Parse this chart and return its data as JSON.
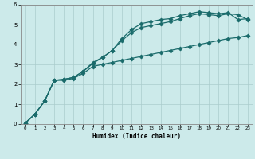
{
  "xlabel": "Humidex (Indice chaleur)",
  "bg_color": "#cceaea",
  "grid_color": "#aacccc",
  "line_color": "#1a6b6b",
  "xlim": [
    -0.5,
    23.5
  ],
  "ylim": [
    0,
    6
  ],
  "xticks": [
    0,
    1,
    2,
    3,
    4,
    5,
    6,
    7,
    8,
    9,
    10,
    11,
    12,
    13,
    14,
    15,
    16,
    17,
    18,
    19,
    20,
    21,
    22,
    23
  ],
  "yticks": [
    0,
    1,
    2,
    3,
    4,
    5,
    6
  ],
  "line1_x": [
    0,
    1,
    2,
    3,
    4,
    5,
    6,
    7,
    8,
    9,
    10,
    11,
    12,
    13,
    14,
    15,
    16,
    17,
    18,
    19,
    20,
    21,
    22,
    23
  ],
  "line1_y": [
    0.05,
    0.5,
    1.15,
    2.2,
    2.25,
    2.35,
    2.65,
    3.05,
    3.35,
    3.7,
    4.3,
    4.75,
    5.05,
    5.15,
    5.25,
    5.3,
    5.45,
    5.55,
    5.65,
    5.6,
    5.55,
    5.6,
    5.25,
    5.3
  ],
  "line2_x": [
    0,
    1,
    2,
    3,
    4,
    5,
    6,
    7,
    8,
    9,
    10,
    11,
    12,
    13,
    14,
    15,
    16,
    17,
    18,
    19,
    20,
    21,
    22,
    23
  ],
  "line2_y": [
    0.05,
    0.5,
    1.15,
    2.2,
    2.25,
    2.35,
    2.65,
    3.1,
    3.35,
    3.7,
    4.2,
    4.6,
    4.85,
    4.95,
    5.05,
    5.15,
    5.3,
    5.45,
    5.55,
    5.5,
    5.45,
    5.55,
    5.5,
    5.25
  ],
  "line3_x": [
    0,
    1,
    2,
    3,
    4,
    5,
    6,
    7,
    8,
    9,
    10,
    11,
    12,
    13,
    14,
    15,
    16,
    17,
    18,
    19,
    20,
    21,
    22,
    23
  ],
  "line3_y": [
    0.05,
    0.5,
    1.15,
    2.2,
    2.2,
    2.3,
    2.55,
    2.9,
    3.0,
    3.1,
    3.2,
    3.3,
    3.4,
    3.5,
    3.6,
    3.7,
    3.8,
    3.9,
    4.0,
    4.1,
    4.2,
    4.3,
    4.35,
    4.45
  ]
}
